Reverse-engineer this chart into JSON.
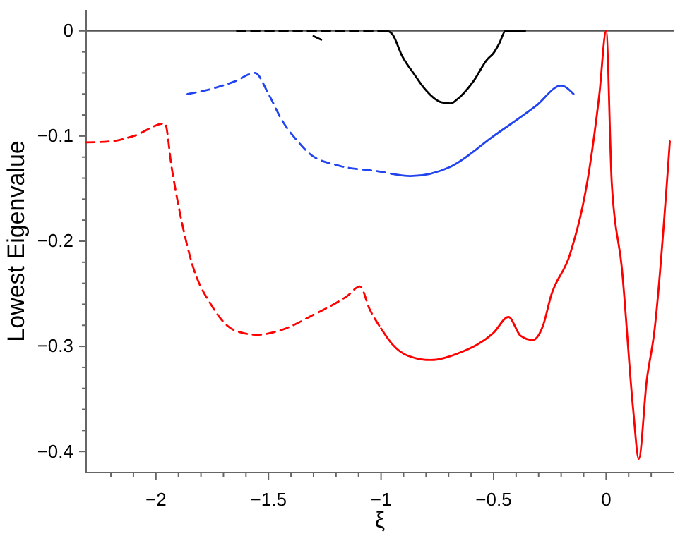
{
  "chart_data": {
    "type": "line",
    "xlabel": "ξ",
    "ylabel": "Lowest Eigenvalue",
    "xlim": [
      -2.31,
      0.3
    ],
    "ylim": [
      -0.42,
      0.02
    ],
    "xticks": [
      {
        "value": -2.2,
        "label": null
      },
      {
        "value": -2.1,
        "label": null
      },
      {
        "value": -2,
        "label": "−2"
      },
      {
        "value": -1.9,
        "label": null
      },
      {
        "value": -1.8,
        "label": null
      },
      {
        "value": -1.7,
        "label": null
      },
      {
        "value": -1.6,
        "label": null
      },
      {
        "value": -1.5,
        "label": "−1.5"
      },
      {
        "value": -1.4,
        "label": null
      },
      {
        "value": -1.3,
        "label": null
      },
      {
        "value": -1.2,
        "label": null
      },
      {
        "value": -1.1,
        "label": null
      },
      {
        "value": -1,
        "label": "−1"
      },
      {
        "value": -0.9,
        "label": null
      },
      {
        "value": -0.8,
        "label": null
      },
      {
        "value": -0.7,
        "label": null
      },
      {
        "value": -0.6,
        "label": null
      },
      {
        "value": -0.5,
        "label": "−0.5"
      },
      {
        "value": -0.4,
        "label": null
      },
      {
        "value": -0.3,
        "label": null
      },
      {
        "value": -0.2,
        "label": null
      },
      {
        "value": -0.1,
        "label": null
      },
      {
        "value": 0,
        "label": "0"
      },
      {
        "value": 0.1,
        "label": null
      },
      {
        "value": 0.2,
        "label": null
      }
    ],
    "yticks": [
      {
        "value": -0.4,
        "label": "−0.4"
      },
      {
        "value": -0.38,
        "label": null
      },
      {
        "value": -0.36,
        "label": null
      },
      {
        "value": -0.34,
        "label": null
      },
      {
        "value": -0.32,
        "label": null
      },
      {
        "value": -0.3,
        "label": "−0.3"
      },
      {
        "value": -0.28,
        "label": null
      },
      {
        "value": -0.26,
        "label": null
      },
      {
        "value": -0.24,
        "label": null
      },
      {
        "value": -0.22,
        "label": null
      },
      {
        "value": -0.2,
        "label": "−0.2"
      },
      {
        "value": -0.18,
        "label": null
      },
      {
        "value": -0.16,
        "label": null
      },
      {
        "value": -0.14,
        "label": null
      },
      {
        "value": -0.12,
        "label": null
      },
      {
        "value": -0.1,
        "label": "−0.1"
      },
      {
        "value": -0.08,
        "label": null
      },
      {
        "value": -0.06,
        "label": null
      },
      {
        "value": -0.04,
        "label": null
      },
      {
        "value": -0.02,
        "label": null
      },
      {
        "value": 0,
        "label": "0"
      }
    ],
    "ref_lines": [
      {
        "axis": "y",
        "value": 0,
        "color": "#555555"
      }
    ],
    "grid": false,
    "marker": "none",
    "series": [
      {
        "color": "#ff0000",
        "line_style": "dashed",
        "x": [
          -2.31,
          -2.2,
          -2.1,
          -1.96,
          -1.93,
          -1.84,
          -1.75,
          -1.69,
          -1.62,
          -1.55,
          -1.45,
          -1.3,
          -1.15,
          -1.094,
          -1.05,
          -1.0
        ],
        "values": [
          -0.106,
          -0.105,
          -0.1,
          -0.088,
          -0.13,
          -0.221,
          -0.262,
          -0.279,
          -0.287,
          -0.289,
          -0.285,
          -0.27,
          -0.252,
          -0.243,
          -0.265,
          -0.283
        ]
      },
      {
        "color": "#ff0000",
        "line_style": "solid",
        "x": [
          -1.0,
          -0.95,
          -0.88,
          -0.78,
          -0.65,
          -0.5,
          -0.434,
          -0.38,
          -0.327,
          -0.28,
          -0.245,
          -0.16,
          -0.075,
          -0.03,
          0,
          0.025,
          0.07,
          0.12,
          0.145,
          0.18,
          0.214,
          0.283
        ],
        "values": [
          -0.283,
          -0.298,
          -0.309,
          -0.313,
          -0.306,
          -0.287,
          -0.272,
          -0.29,
          -0.294,
          -0.28,
          -0.252,
          -0.212,
          -0.132,
          -0.06,
          0,
          -0.145,
          -0.226,
          -0.36,
          -0.407,
          -0.333,
          -0.286,
          -0.105
        ]
      },
      {
        "color": "#2244ee",
        "line_style": "dashed",
        "x": [
          -1.86,
          -1.75,
          -1.65,
          -1.56,
          -1.5,
          -1.44,
          -1.37,
          -1.31,
          -1.19,
          -1.0,
          -0.95
        ],
        "values": [
          -0.06,
          -0.055,
          -0.048,
          -0.04,
          -0.06,
          -0.085,
          -0.105,
          -0.118,
          -0.128,
          -0.134,
          -0.136
        ]
      },
      {
        "color": "#2244ee",
        "line_style": "solid",
        "x": [
          -0.95,
          -0.87,
          -0.69,
          -0.5,
          -0.31,
          -0.2,
          -0.145
        ],
        "values": [
          -0.136,
          -0.138,
          -0.129,
          -0.1,
          -0.071,
          -0.052,
          -0.06
        ]
      },
      {
        "color": "#000000",
        "line_style": "dashed",
        "x": [
          -1.64,
          -0.97
        ],
        "values": [
          0,
          0
        ]
      },
      {
        "color": "#000000",
        "line_style": "dashed",
        "x": [
          -1.3,
          -1.26
        ],
        "values": [
          -0.005,
          -0.009
        ]
      },
      {
        "color": "#000000",
        "line_style": "solid",
        "x": [
          -0.97,
          -0.95,
          -0.906,
          -0.85,
          -0.81,
          -0.73,
          -0.69,
          -0.667,
          -0.59,
          -0.528,
          -0.5,
          -0.475,
          -0.447,
          -0.36
        ],
        "values": [
          0,
          -0.003,
          -0.024,
          -0.042,
          -0.054,
          -0.068,
          -0.069,
          -0.066,
          -0.048,
          -0.027,
          -0.021,
          -0.012,
          0,
          0
        ]
      }
    ]
  }
}
